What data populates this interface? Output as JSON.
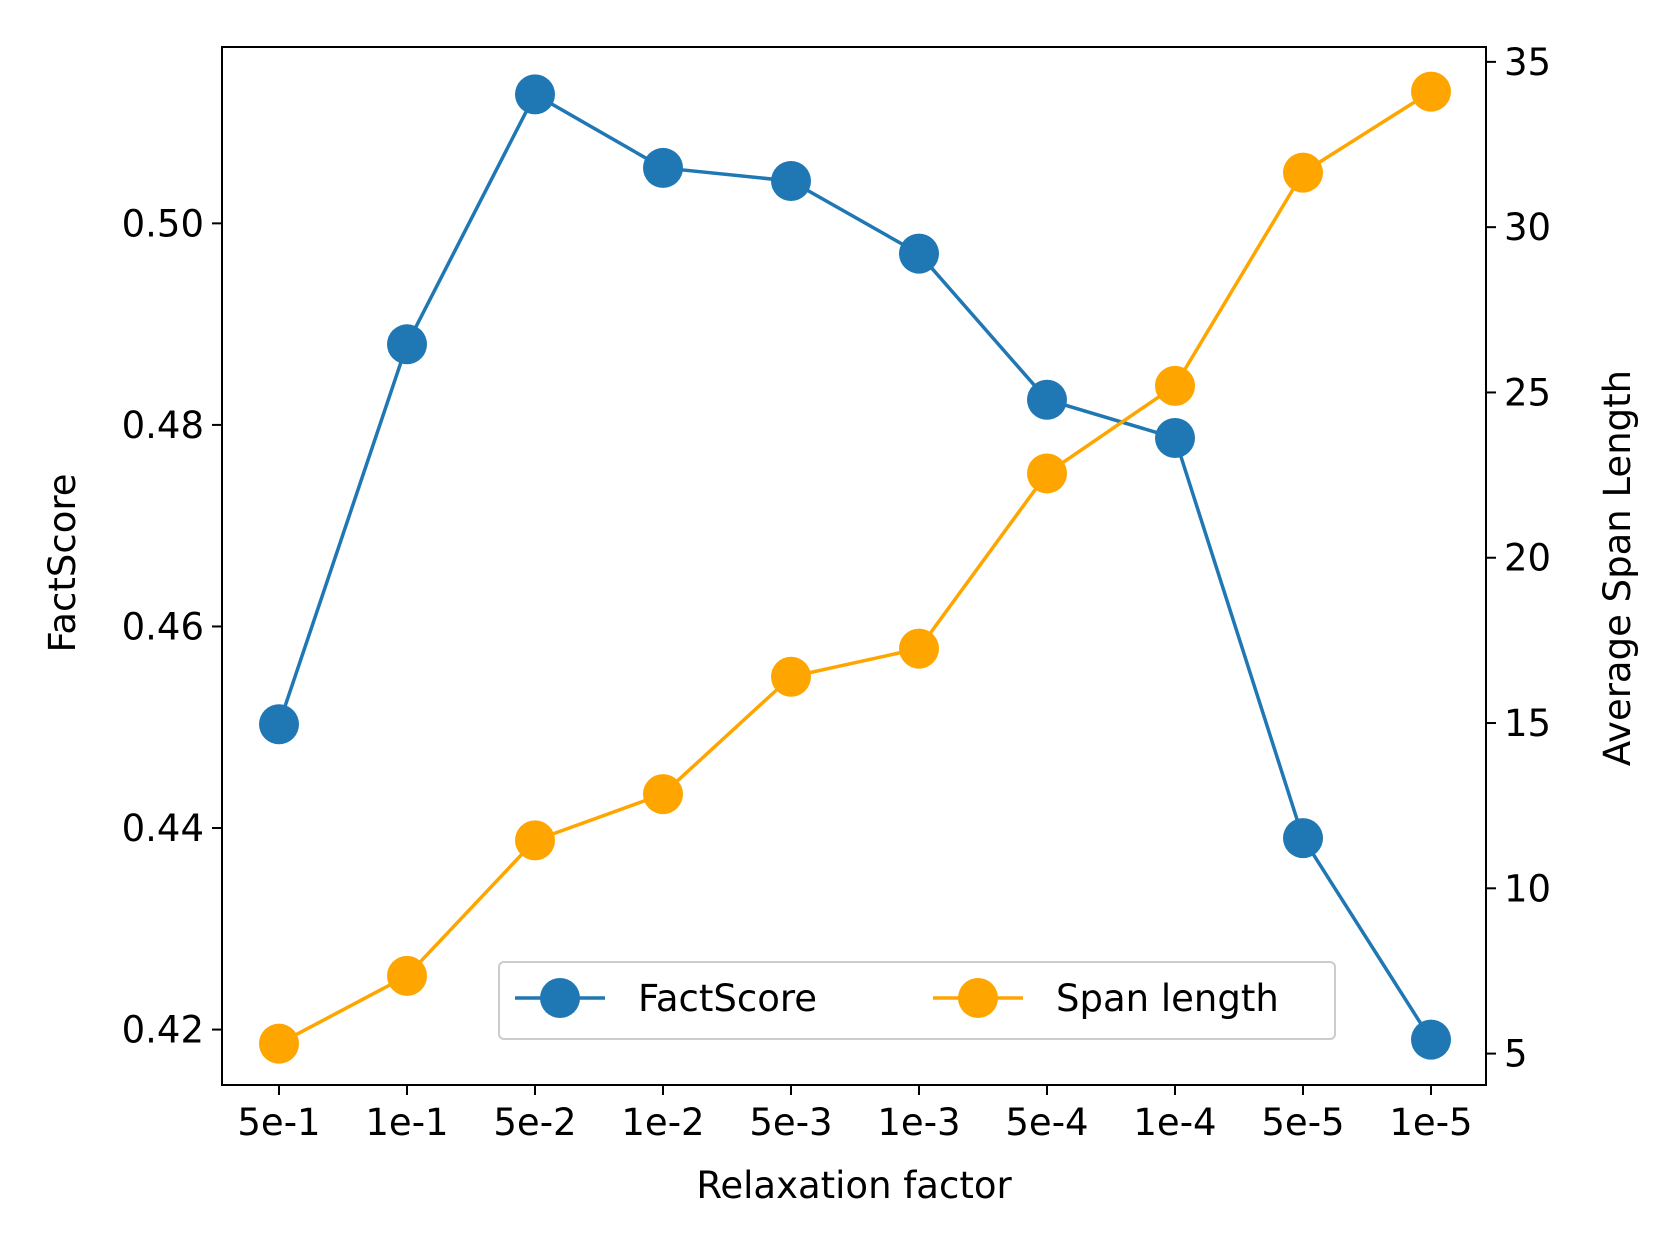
{
  "chart_data": {
    "type": "line",
    "xlabel": "Relaxation factor",
    "categories": [
      "5e-1",
      "1e-1",
      "5e-2",
      "1e-2",
      "5e-3",
      "1e-3",
      "5e-4",
      "1e-4",
      "5e-5",
      "1e-5"
    ],
    "y_left": {
      "label": "FactScore",
      "lim": [
        0.4145,
        0.5175
      ],
      "ticks": [
        0.42,
        0.44,
        0.46,
        0.48,
        0.5
      ],
      "tick_labels": [
        "0.42",
        "0.44",
        "0.46",
        "0.48",
        "0.50"
      ]
    },
    "y_right": {
      "label": "Average Span Length",
      "lim": [
        4.05,
        35.45
      ],
      "ticks": [
        5,
        10,
        15,
        20,
        25,
        30,
        35
      ],
      "tick_labels": [
        "5",
        "10",
        "15",
        "20",
        "25",
        "30",
        "35"
      ]
    },
    "series": [
      {
        "name": "FactScore",
        "axis": "left",
        "color": "#1f77b4",
        "values": [
          0.4503,
          0.488,
          0.5128,
          0.5055,
          0.5042,
          0.497,
          0.4825,
          0.4787,
          0.439,
          0.419
        ]
      },
      {
        "name": "Span length",
        "axis": "right",
        "color": "#ffa500",
        "values": [
          5.3,
          7.35,
          11.45,
          12.85,
          16.4,
          17.25,
          22.55,
          25.2,
          31.65,
          34.1
        ]
      }
    ],
    "legend": {
      "position": "lower-center",
      "entries": [
        "FactScore",
        "Span length"
      ]
    },
    "grid": false
  }
}
